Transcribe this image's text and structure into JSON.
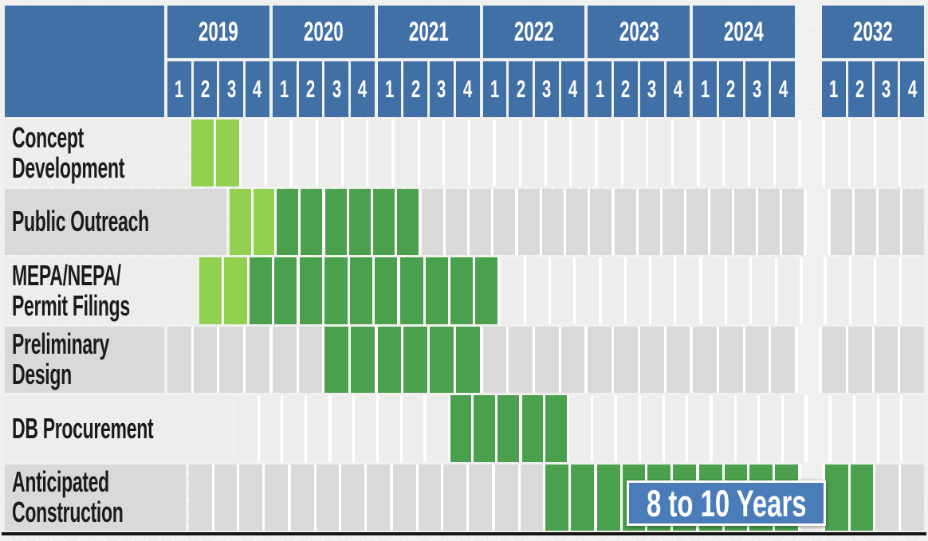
{
  "slide": {
    "background": "#f0f0ee"
  },
  "colors": {
    "header_blue": "#4170a6",
    "callout_blue": "#4a7cba",
    "light_green": "#92d050",
    "dark_green": "#4aa04c",
    "row_light": "#ededeb",
    "row_dark": "#d9d9d7",
    "separator_white": "#ffffff",
    "baseline_black": "#141414",
    "label_text": "#1b1b1b",
    "header_text": "#ffffff"
  },
  "chart_data": {
    "type": "bar",
    "variant": "gantt-quarterly-schedule",
    "title": "",
    "legend_position": "none",
    "grid": "quarter cells with white separators; gap column between 2024 and 2032",
    "years": [
      "2019",
      "2020",
      "2021",
      "2022",
      "2023",
      "2024",
      "2032"
    ],
    "quarter_labels": [
      "1",
      "2",
      "3",
      "4"
    ],
    "cell_codes": {
      ".": "empty",
      "L": "light-green",
      "D": "dark-green"
    },
    "rows": [
      {
        "label": "Concept Development",
        "label_lines": [
          "Concept",
          "Development"
        ],
        "cells": "LL..........................",
        "spans": [
          {
            "from": "2019 Q1",
            "to": "2019 Q2",
            "color": "light-green"
          }
        ]
      },
      {
        "label": "Public Outreach",
        "label_lines": [
          "Public Outreach"
        ],
        "cells": "LLDDDDDD....................",
        "spans": [
          {
            "from": "2019 Q1",
            "to": "2019 Q2",
            "color": "light-green"
          },
          {
            "from": "2019 Q3",
            "to": "2020 Q4",
            "color": "dark-green"
          }
        ]
      },
      {
        "label": "MEPA/NEPA/ Permit Filings",
        "label_lines": [
          "MEPA/NEPA/",
          "Permit Filings"
        ],
        "cells": "LLDDDDDDDDDD................",
        "spans": [
          {
            "from": "2019 Q1",
            "to": "2019 Q2",
            "color": "light-green"
          },
          {
            "from": "2019 Q3",
            "to": "2021 Q4",
            "color": "dark-green"
          }
        ]
      },
      {
        "label": "Preliminary Design",
        "label_lines": [
          "Preliminary",
          "Design"
        ],
        "cells": "......DDDDDD................",
        "spans": [
          {
            "from": "2020 Q3",
            "to": "2021 Q4",
            "color": "dark-green"
          }
        ]
      },
      {
        "label": "DB Procurement",
        "label_lines": [
          "DB Procurement"
        ],
        "cells": ".........DDDDD..............",
        "spans": [
          {
            "from": "2021 Q2",
            "to": "2022 Q2",
            "color": "dark-green"
          }
        ]
      },
      {
        "label": "Anticipated Construction",
        "label_lines": [
          "Anticipated",
          "Construction"
        ],
        "cells": "..............DDDDDDDDDDDD..",
        "spans": [
          {
            "from": "2022 Q3",
            "to": "2024 Q4",
            "color": "dark-green"
          },
          {
            "from": "2032 Q1",
            "to": "2032 Q2",
            "color": "dark-green"
          }
        ]
      }
    ],
    "annotation": {
      "text": "8 to 10 Years"
    }
  }
}
